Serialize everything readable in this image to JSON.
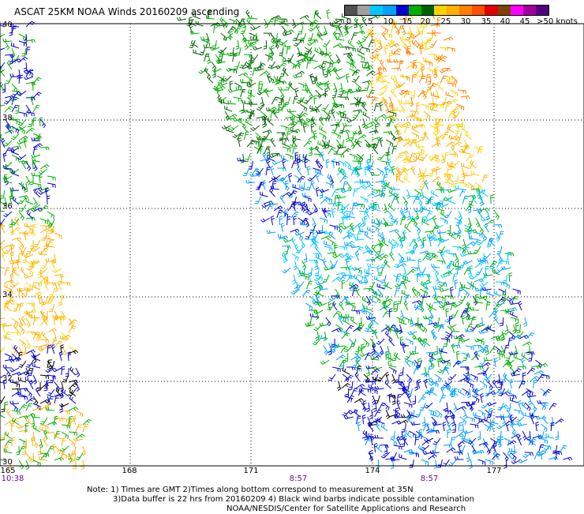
{
  "title": "ASCAT 25KM NOAA Winds 20160209 ascending",
  "legend": {
    "colors": [
      "#505050",
      "#a0a0a0",
      "#00c8ff",
      "#00a0ff",
      "#0000d0",
      "#00b000",
      "#006000",
      "#ffd000",
      "#ffb000",
      "#ff8000",
      "#ff5000",
      "#e00000",
      "#804000",
      "#ff00ff",
      "#a000a0",
      "#500080"
    ],
    "labels": [
      "0",
      "5",
      "10",
      "15",
      "20",
      "25",
      "30",
      "35",
      "40",
      "45",
      ">50 knots"
    ]
  },
  "map": {
    "latitudes": [
      "40",
      "38",
      "36",
      "34",
      "32",
      "30"
    ],
    "longitudes": [
      "165",
      "168",
      "171",
      "174",
      "177"
    ],
    "pass_times": [
      "10:38",
      "8:57",
      "8:57"
    ]
  },
  "notes": [
    "Note: 1) Times are GMT 2)Times along bottom correspond to measurement at 35N",
    "3)Data buffer is 22 hrs from 20160209 4) Black wind barbs indicate possible contamination",
    "NOAA/NESDIS/Center for Satellite Applications and Research"
  ]
}
